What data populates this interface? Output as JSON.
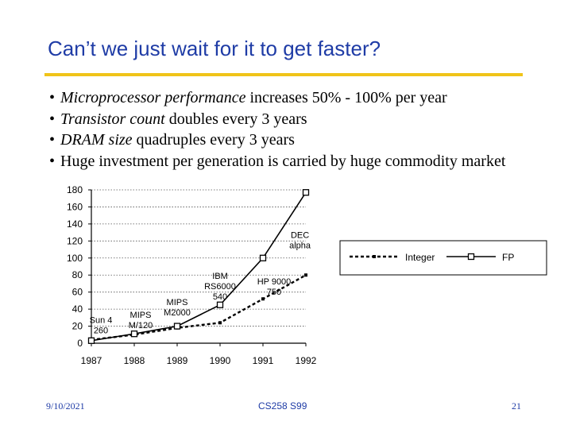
{
  "slide": {
    "title": "Can’t we just wait for it to get faster?",
    "bullets": [
      {
        "italic": "Microprocessor performance",
        "rest": " increases 50% - 100% per year"
      },
      {
        "italic": "Transistor count",
        "rest": " doubles every 3 years"
      },
      {
        "italic": "DRAM size",
        "rest": " quadruples every 3 years"
      },
      {
        "italic": "",
        "rest": "Huge investment per generation is carried by huge commodity market"
      }
    ],
    "footer": {
      "date": "9/10/2021",
      "course": "CS258 S99",
      "page": "21"
    }
  },
  "chart_data": {
    "type": "line",
    "x": [
      1987,
      1988,
      1989,
      1990,
      1991,
      1992
    ],
    "x_tick_labels": [
      "1987",
      "1988",
      "1989",
      "1990",
      "1991",
      "1992"
    ],
    "ylim": [
      0,
      180
    ],
    "y_ticks": [
      0,
      20,
      40,
      60,
      80,
      100,
      120,
      140,
      160,
      180
    ],
    "grid": "horizontal dotted",
    "legend_position": "right",
    "series": [
      {
        "name": "Integer",
        "style": "dashed",
        "color": "#000000",
        "values": [
          4,
          10,
          18,
          24,
          52,
          80
        ]
      },
      {
        "name": "FP",
        "style": "solid",
        "color": "#000000",
        "values": [
          3,
          11,
          20,
          45,
          100,
          177
        ]
      }
    ],
    "annotations": [
      {
        "lines": [
          "Sun 4",
          "260"
        ],
        "x": 1987,
        "y": 24
      },
      {
        "lines": [
          "MIPS",
          "M/120"
        ],
        "x": 1988,
        "y": 30
      },
      {
        "lines": [
          "MIPS",
          "M2000"
        ],
        "x": 1989,
        "y": 45
      },
      {
        "lines": [
          "IBM",
          "RS6000",
          "540"
        ],
        "x": 1990,
        "y": 70
      },
      {
        "lines": [
          "HP 9000",
          "750"
        ],
        "x": 1991,
        "y": 69
      },
      {
        "lines": [
          "DEC",
          "alpha"
        ],
        "x": 1991.9,
        "y": 116
      }
    ]
  }
}
